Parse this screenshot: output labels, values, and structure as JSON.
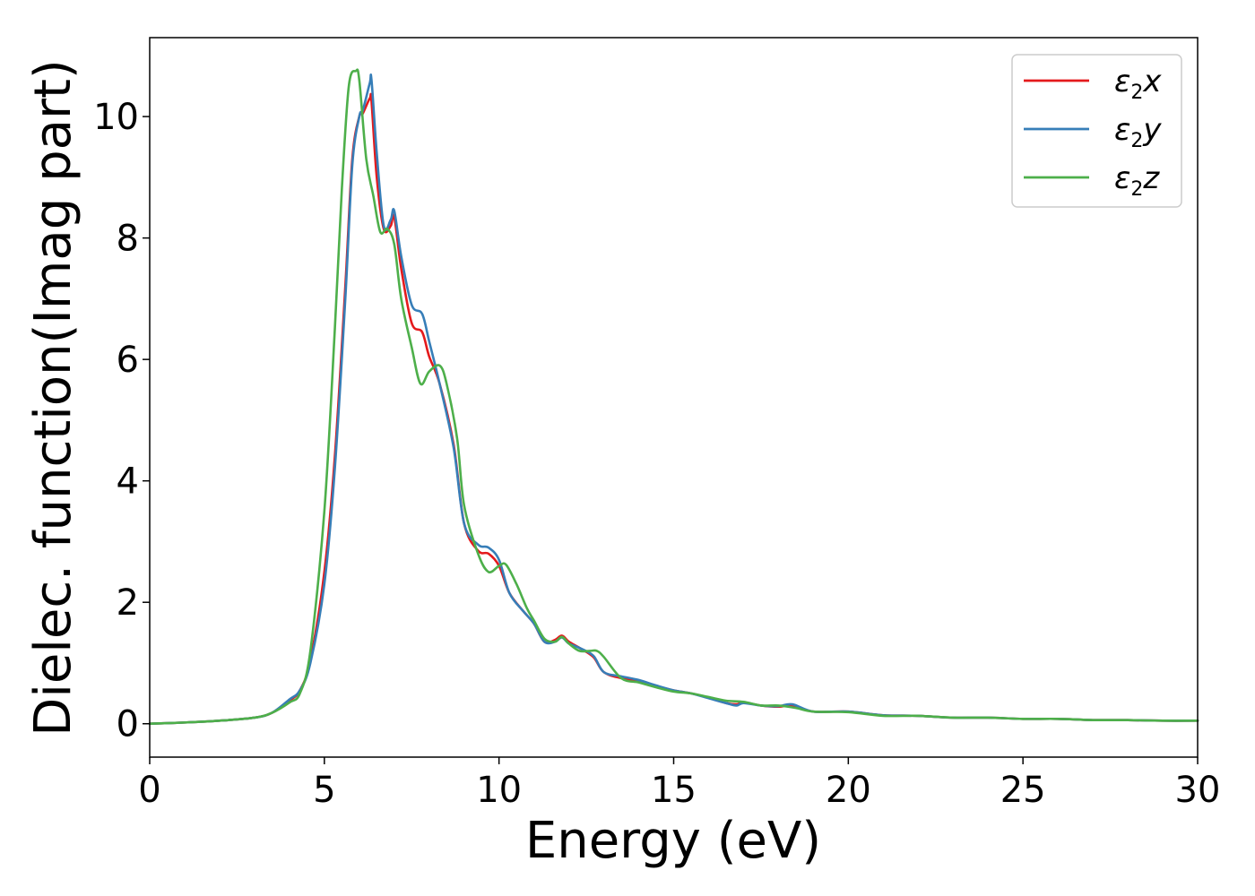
{
  "chart_data": {
    "type": "line",
    "title": "",
    "xlabel": "Energy (eV)",
    "ylabel": "Dielec. function(Imag part)",
    "xlim": [
      0,
      30
    ],
    "ylim": [
      -0.55,
      11.3
    ],
    "xticks": [
      0,
      5,
      10,
      15,
      20,
      25,
      30
    ],
    "yticks": [
      0,
      2,
      4,
      6,
      8,
      10
    ],
    "grid": false,
    "legend_position": "top-right",
    "series": [
      {
        "name": "ε2x",
        "legend": {
          "base": "ε",
          "sub": "2",
          "suffix": "x"
        },
        "color": "#e41a1c",
        "x": [
          0,
          1,
          2,
          3,
          3.5,
          4,
          4.3,
          4.6,
          5,
          5.3,
          5.6,
          5.8,
          6.0,
          6.1,
          6.3,
          6.35,
          6.5,
          6.7,
          6.9,
          7.0,
          7.2,
          7.5,
          7.8,
          8.0,
          8.3,
          8.7,
          9.0,
          9.4,
          9.7,
          10.0,
          10.3,
          10.7,
          11.0,
          11.3,
          11.6,
          11.8,
          12.0,
          12.3,
          12.7,
          13.0,
          13.5,
          14.0,
          14.5,
          15.0,
          15.5,
          16.0,
          16.5,
          16.8,
          17.0,
          17.5,
          18.0,
          18.4,
          19.0,
          20.0,
          21.0,
          22.0,
          23.0,
          24.0,
          25.0,
          26.0,
          27.0,
          28.0,
          29.0,
          30.0
        ],
        "y": [
          0.0,
          0.02,
          0.05,
          0.1,
          0.18,
          0.38,
          0.55,
          1.05,
          2.5,
          4.4,
          7.2,
          9.3,
          10.0,
          10.05,
          10.3,
          10.25,
          9.0,
          8.15,
          8.2,
          8.35,
          7.5,
          6.6,
          6.45,
          6.05,
          5.6,
          4.6,
          3.3,
          2.85,
          2.8,
          2.6,
          2.15,
          1.85,
          1.65,
          1.35,
          1.38,
          1.45,
          1.35,
          1.25,
          1.1,
          0.85,
          0.75,
          0.7,
          0.62,
          0.55,
          0.5,
          0.43,
          0.34,
          0.32,
          0.35,
          0.3,
          0.28,
          0.3,
          0.2,
          0.2,
          0.14,
          0.13,
          0.1,
          0.1,
          0.08,
          0.08,
          0.06,
          0.06,
          0.05,
          0.05
        ]
      },
      {
        "name": "ε2y",
        "legend": {
          "base": "ε",
          "sub": "2",
          "suffix": "y"
        },
        "color": "#377eb8",
        "x": [
          0,
          1,
          2,
          3,
          3.5,
          4,
          4.3,
          4.6,
          5,
          5.3,
          5.6,
          5.8,
          6.0,
          6.1,
          6.3,
          6.35,
          6.5,
          6.7,
          6.9,
          7.0,
          7.2,
          7.5,
          7.8,
          8.0,
          8.3,
          8.7,
          9.0,
          9.4,
          9.7,
          10.0,
          10.3,
          10.7,
          11.0,
          11.3,
          11.6,
          11.8,
          12.0,
          12.3,
          12.7,
          13.0,
          13.5,
          14.0,
          14.5,
          15.0,
          15.5,
          16.0,
          16.5,
          16.8,
          17.0,
          17.5,
          18.0,
          18.4,
          19.0,
          20.0,
          21.0,
          22.0,
          23.0,
          24.0,
          25.0,
          26.0,
          27.0,
          28.0,
          29.0,
          30.0
        ],
        "y": [
          0.0,
          0.02,
          0.05,
          0.1,
          0.18,
          0.4,
          0.55,
          1.0,
          2.3,
          4.2,
          7.0,
          9.2,
          10.0,
          10.1,
          10.55,
          10.6,
          9.4,
          8.2,
          8.3,
          8.45,
          7.7,
          6.9,
          6.75,
          6.3,
          5.6,
          4.55,
          3.3,
          2.95,
          2.9,
          2.7,
          2.15,
          1.85,
          1.65,
          1.35,
          1.35,
          1.42,
          1.32,
          1.25,
          1.12,
          0.85,
          0.78,
          0.72,
          0.63,
          0.55,
          0.5,
          0.42,
          0.34,
          0.3,
          0.34,
          0.3,
          0.29,
          0.32,
          0.2,
          0.2,
          0.14,
          0.13,
          0.1,
          0.1,
          0.08,
          0.08,
          0.06,
          0.06,
          0.05,
          0.05
        ]
      },
      {
        "name": "ε2z",
        "legend": {
          "base": "ε",
          "sub": "2",
          "suffix": "z"
        },
        "color": "#4daf4a",
        "x": [
          0,
          1,
          2,
          3,
          3.5,
          4,
          4.3,
          4.6,
          5.0,
          5.3,
          5.5,
          5.7,
          5.9,
          6.0,
          6.2,
          6.4,
          6.6,
          6.8,
          7.0,
          7.2,
          7.5,
          7.75,
          8.0,
          8.3,
          8.5,
          8.8,
          9.0,
          9.4,
          9.7,
          10.0,
          10.2,
          10.5,
          10.8,
          11.0,
          11.3,
          11.6,
          11.8,
          12.0,
          12.3,
          12.6,
          12.8,
          13.0,
          13.5,
          14.0,
          14.5,
          15.0,
          15.5,
          16.0,
          16.5,
          17.0,
          17.5,
          18.0,
          18.5,
          19.0,
          20.0,
          21.0,
          22.0,
          23.0,
          24.0,
          25.0,
          26.0,
          27.0,
          28.0,
          29.0,
          30.0
        ],
        "y": [
          0.0,
          0.02,
          0.05,
          0.1,
          0.18,
          0.35,
          0.5,
          1.2,
          3.5,
          6.5,
          8.8,
          10.5,
          10.75,
          10.6,
          9.3,
          8.7,
          8.1,
          8.15,
          7.9,
          7.0,
          6.2,
          5.6,
          5.8,
          5.9,
          5.6,
          4.7,
          3.6,
          2.8,
          2.5,
          2.6,
          2.62,
          2.3,
          1.9,
          1.7,
          1.4,
          1.35,
          1.43,
          1.32,
          1.2,
          1.2,
          1.2,
          1.1,
          0.75,
          0.68,
          0.6,
          0.53,
          0.5,
          0.44,
          0.38,
          0.36,
          0.3,
          0.3,
          0.26,
          0.2,
          0.19,
          0.13,
          0.13,
          0.1,
          0.1,
          0.08,
          0.08,
          0.06,
          0.06,
          0.05,
          0.05
        ]
      }
    ]
  }
}
